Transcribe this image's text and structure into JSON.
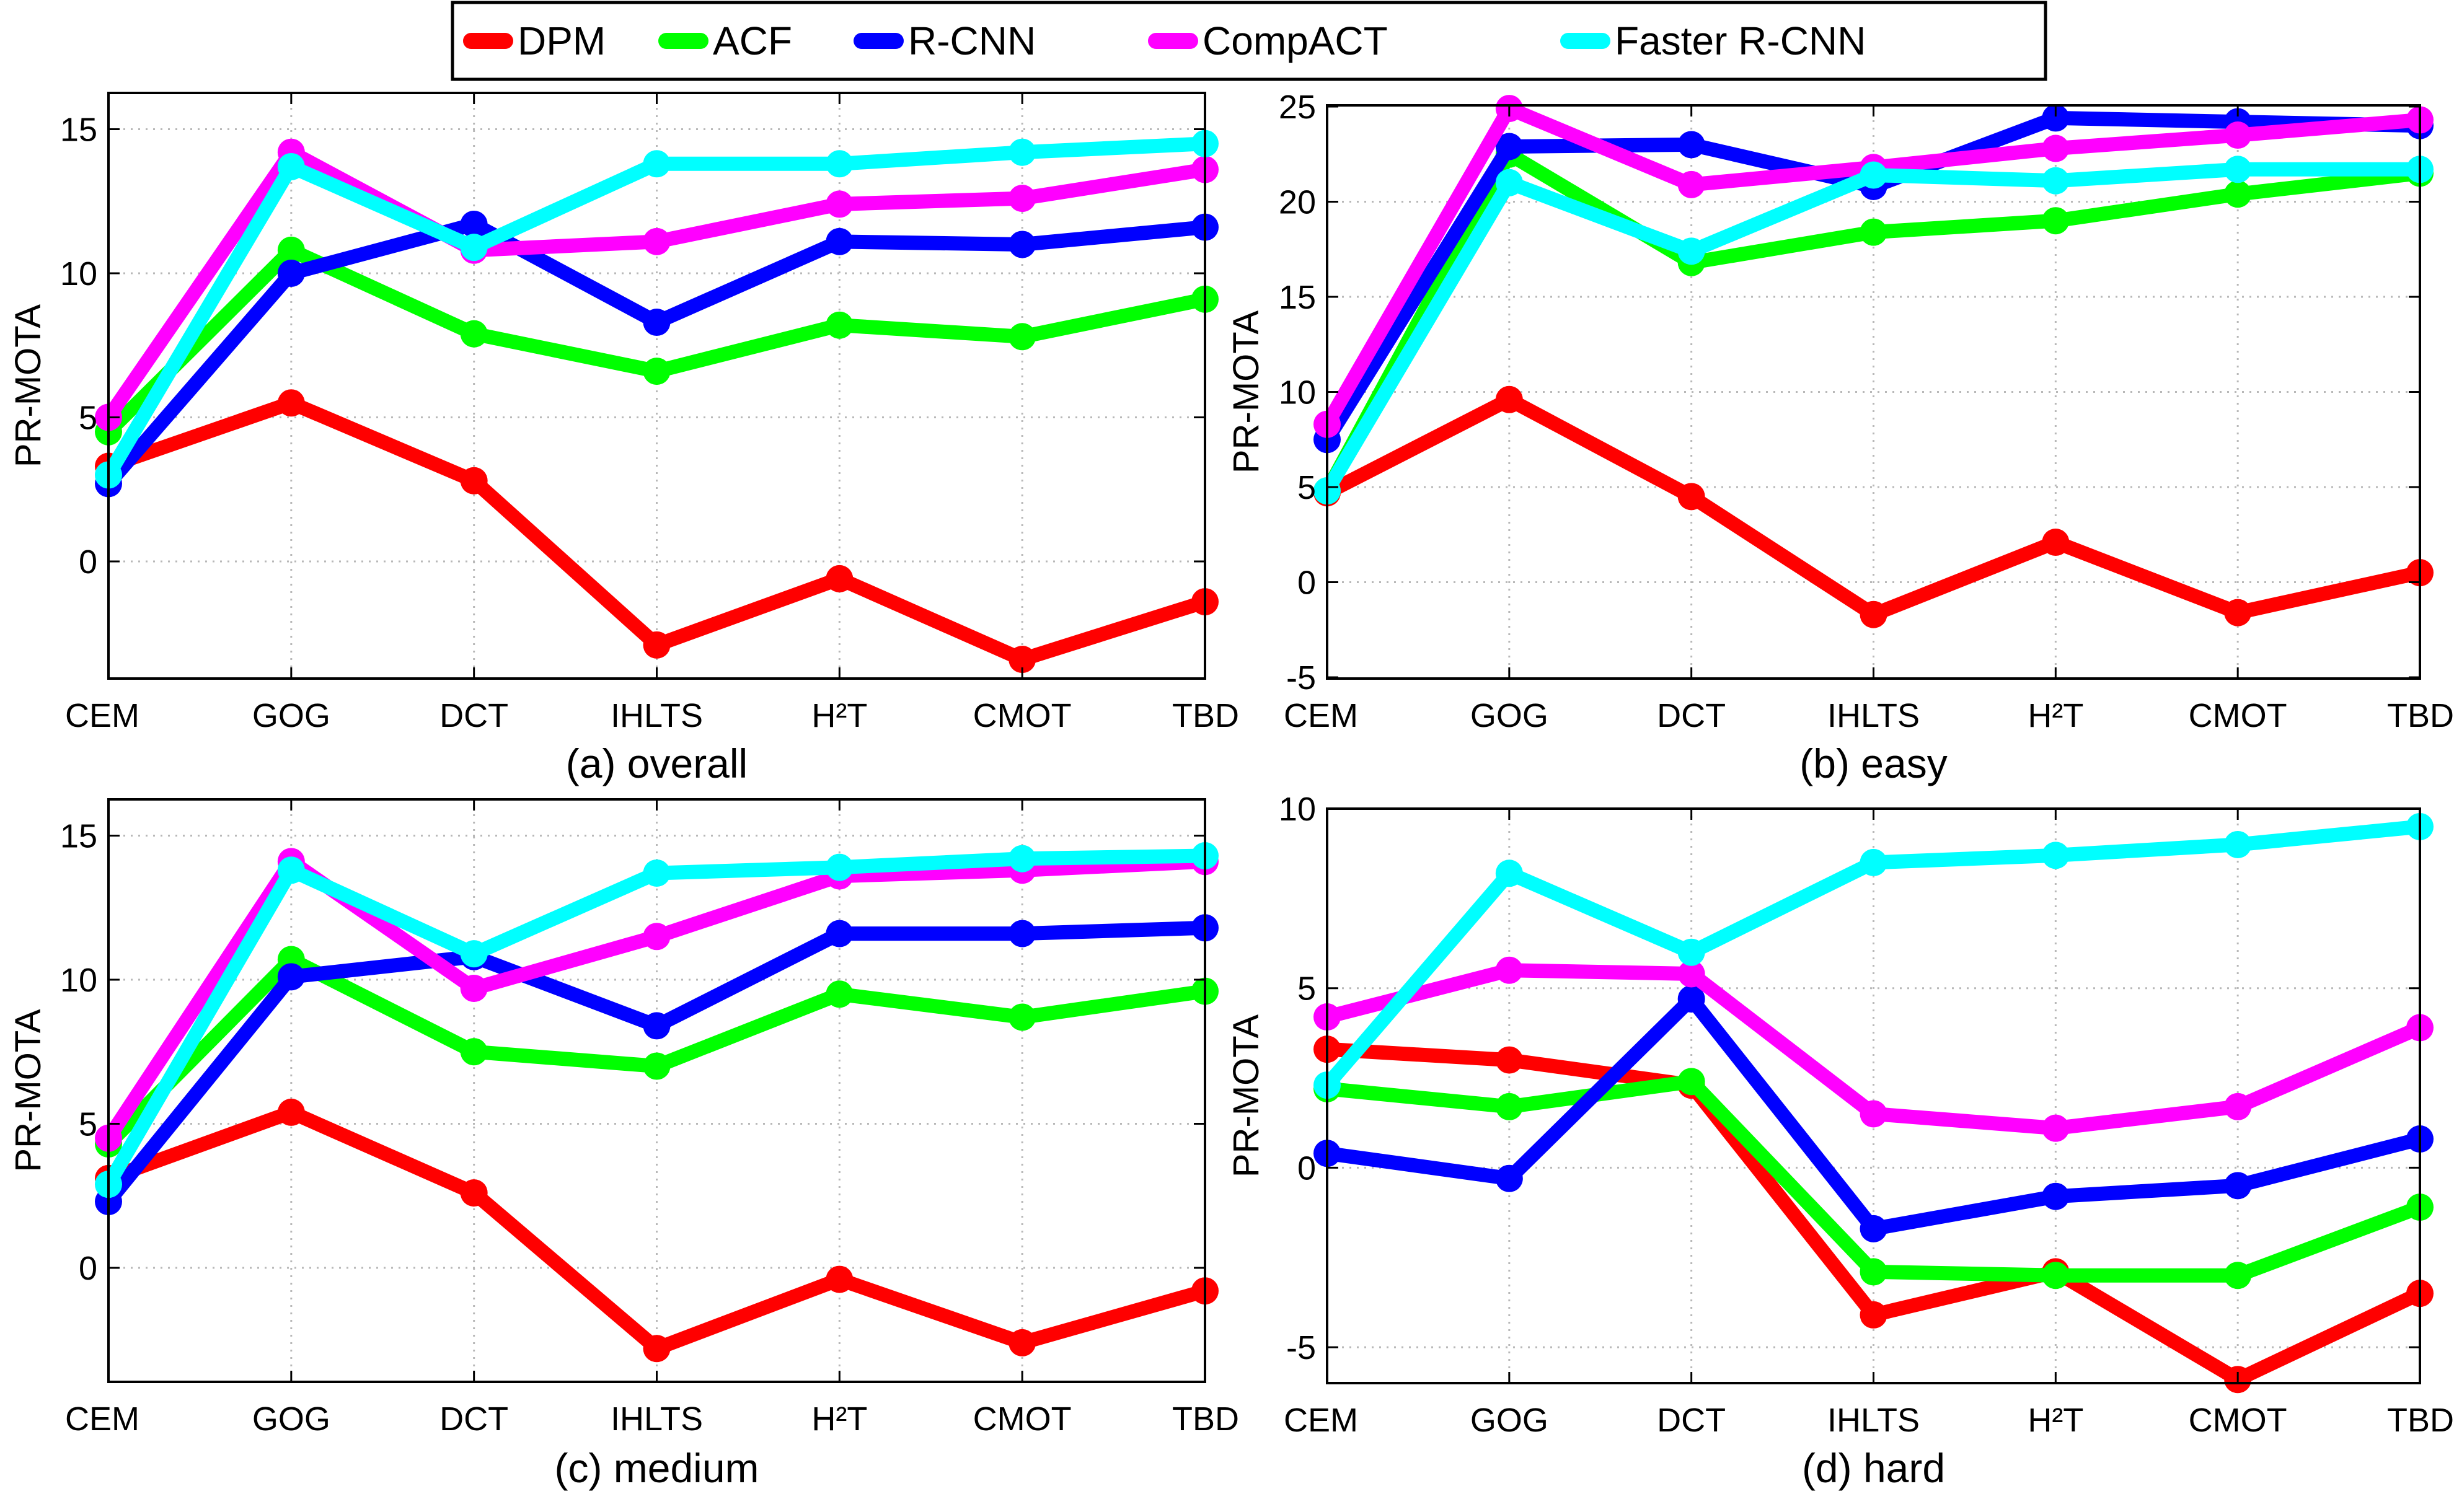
{
  "legend": [
    {
      "name": "DPM",
      "color": "#ff0000"
    },
    {
      "name": "ACF",
      "color": "#00ff00"
    },
    {
      "name": "R-CNN",
      "color": "#0000ff"
    },
    {
      "name": "CompACT",
      "color": "#ff00ff"
    },
    {
      "name": "Faster R-CNN",
      "color": "#00ffff"
    }
  ],
  "chart_data": [
    {
      "type": "line",
      "title": "(a) overall",
      "xlabel": "",
      "ylabel": "PR-MOTA",
      "categories": [
        "CEM",
        "GOG",
        "DCT",
        "IHLTS",
        "H²T",
        "CMOT",
        "TBD"
      ],
      "ylim": [
        -4,
        16
      ],
      "yticks": [
        0,
        5,
        10,
        15
      ],
      "grid": true,
      "series": [
        {
          "name": "DPM",
          "values": [
            3.3,
            5.5,
            2.8,
            -2.9,
            -0.6,
            -3.4,
            -1.4
          ]
        },
        {
          "name": "ACF",
          "values": [
            4.5,
            10.8,
            7.9,
            6.6,
            8.2,
            7.8,
            9.1
          ]
        },
        {
          "name": "R-CNN",
          "values": [
            2.7,
            10.0,
            11.7,
            8.3,
            11.1,
            11.0,
            11.6
          ]
        },
        {
          "name": "CompACT",
          "values": [
            5.0,
            14.2,
            10.8,
            11.1,
            12.4,
            12.6,
            13.6
          ]
        },
        {
          "name": "Faster R-CNN",
          "values": [
            3.0,
            13.7,
            10.9,
            13.8,
            13.8,
            14.2,
            14.5
          ]
        }
      ]
    },
    {
      "type": "line",
      "title": "(b) easy",
      "xlabel": "",
      "ylabel": "PR-MOTA",
      "categories": [
        "CEM",
        "GOG",
        "DCT",
        "IHLTS",
        "H²T",
        "CMOT",
        "TBD"
      ],
      "ylim": [
        -5,
        25
      ],
      "yticks": [
        -5,
        0,
        5,
        10,
        15,
        20,
        25
      ],
      "grid": true,
      "series": [
        {
          "name": "DPM",
          "values": [
            4.7,
            9.6,
            4.5,
            -1.7,
            2.1,
            -1.6,
            0.5
          ]
        },
        {
          "name": "ACF",
          "values": [
            4.8,
            22.5,
            16.8,
            18.4,
            19.0,
            20.4,
            21.5
          ]
        },
        {
          "name": "R-CNN",
          "values": [
            7.5,
            22.9,
            23.0,
            20.8,
            24.4,
            24.2,
            24.0
          ]
        },
        {
          "name": "CompACT",
          "values": [
            8.3,
            24.9,
            20.9,
            21.8,
            22.8,
            23.5,
            24.3
          ]
        },
        {
          "name": "Faster R-CNN",
          "values": [
            4.8,
            21.0,
            17.4,
            21.4,
            21.1,
            21.7,
            21.7
          ]
        }
      ]
    },
    {
      "type": "line",
      "title": "(c) medium",
      "xlabel": "",
      "ylabel": "PR-MOTA",
      "categories": [
        "CEM",
        "GOG",
        "DCT",
        "IHLTS",
        "H²T",
        "CMOT",
        "TBD"
      ],
      "ylim": [
        -4,
        16
      ],
      "yticks": [
        0,
        5,
        10,
        15
      ],
      "grid": true,
      "series": [
        {
          "name": "DPM",
          "values": [
            3.1,
            5.4,
            2.6,
            -2.8,
            -0.4,
            -2.6,
            -0.8
          ]
        },
        {
          "name": "ACF",
          "values": [
            4.3,
            10.7,
            7.5,
            7.0,
            9.5,
            8.7,
            9.6
          ]
        },
        {
          "name": "R-CNN",
          "values": [
            2.3,
            10.1,
            10.8,
            8.4,
            11.6,
            11.6,
            11.8
          ]
        },
        {
          "name": "CompACT",
          "values": [
            4.5,
            14.1,
            9.7,
            11.5,
            13.6,
            13.8,
            14.1
          ]
        },
        {
          "name": "Faster R-CNN",
          "values": [
            2.9,
            13.8,
            10.9,
            13.7,
            13.9,
            14.2,
            14.3
          ]
        }
      ]
    },
    {
      "type": "line",
      "title": "(d) hard",
      "xlabel": "",
      "ylabel": "PR-MOTA",
      "categories": [
        "CEM",
        "GOG",
        "DCT",
        "IHLTS",
        "H²T",
        "CMOT",
        "TBD"
      ],
      "ylim": [
        -6,
        10
      ],
      "yticks": [
        -5,
        0,
        5,
        10
      ],
      "grid": true,
      "series": [
        {
          "name": "DPM",
          "values": [
            3.3,
            3.0,
            2.3,
            -4.1,
            -2.9,
            -5.9,
            -3.5
          ]
        },
        {
          "name": "ACF",
          "values": [
            2.2,
            1.7,
            2.4,
            -2.9,
            -3.0,
            -3.0,
            -1.1
          ]
        },
        {
          "name": "R-CNN",
          "values": [
            0.4,
            -0.3,
            4.7,
            -1.7,
            -0.8,
            -0.5,
            0.8
          ]
        },
        {
          "name": "CompACT",
          "values": [
            4.2,
            5.5,
            5.4,
            1.5,
            1.1,
            1.7,
            3.9
          ]
        },
        {
          "name": "Faster R-CNN",
          "values": [
            2.3,
            8.2,
            6.0,
            8.5,
            8.7,
            9.0,
            9.5
          ]
        }
      ]
    }
  ]
}
